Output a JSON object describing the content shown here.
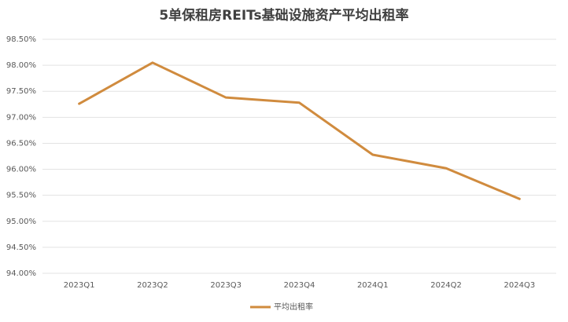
{
  "chart_data": {
    "type": "line",
    "title": "5单保租房REITs基础设施资产平均出租率",
    "categories": [
      "2023Q1",
      "2023Q2",
      "2023Q3",
      "2023Q4",
      "2024Q1",
      "2024Q2",
      "2024Q3"
    ],
    "series": [
      {
        "name": "平均出租率",
        "color": "#d08b3e",
        "values": [
          97.26,
          98.05,
          97.38,
          97.28,
          96.28,
          96.02,
          95.43
        ]
      }
    ],
    "ylim": [
      94,
      98.5
    ],
    "yticks": [
      {
        "value": 94,
        "label": "94.00%"
      },
      {
        "value": 94.5,
        "label": "94.50%"
      },
      {
        "value": 95,
        "label": "95.00%"
      },
      {
        "value": 95.5,
        "label": "95.50%"
      },
      {
        "value": 96,
        "label": "96.00%"
      },
      {
        "value": 96.5,
        "label": "96.50%"
      },
      {
        "value": 97,
        "label": "97.00%"
      },
      {
        "value": 97.5,
        "label": "97.50%"
      },
      {
        "value": 98,
        "label": "98.00%"
      },
      {
        "value": 98.5,
        "label": "98.50%"
      }
    ],
    "grid": true,
    "legend": "bottom"
  }
}
